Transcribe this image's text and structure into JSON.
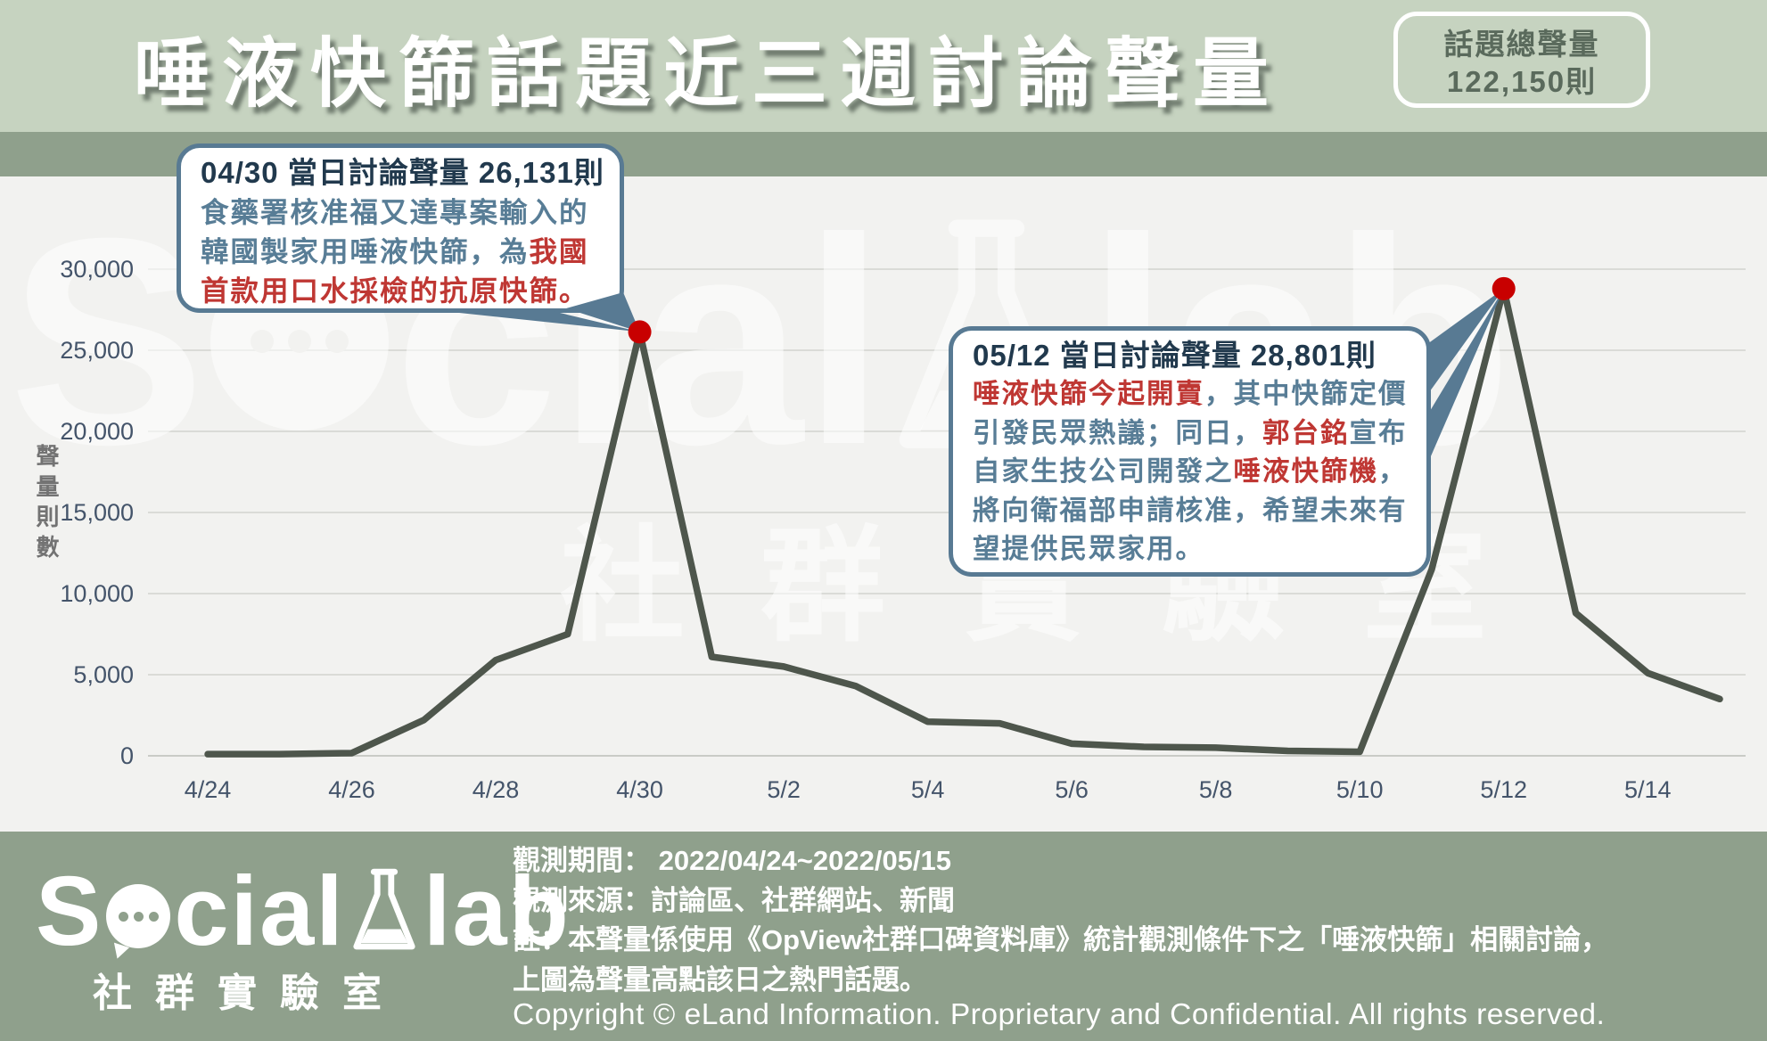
{
  "header": {
    "title": "唾液快篩話題近三週討論聲量",
    "badge": {
      "label": "話題總聲量",
      "value": "122,150則"
    }
  },
  "chart": {
    "y_axis_title": "聲量則數"
  },
  "chart_data": {
    "type": "line",
    "title": "唾液快篩話題近三週討論聲量",
    "xlabel": "",
    "ylabel": "聲量則數",
    "x": [
      "4/24",
      "4/25",
      "4/26",
      "4/27",
      "4/28",
      "4/29",
      "4/30",
      "5/1",
      "5/2",
      "5/3",
      "5/4",
      "5/5",
      "5/6",
      "5/7",
      "5/8",
      "5/9",
      "5/10",
      "5/11",
      "5/12",
      "5/13",
      "5/14",
      "5/15"
    ],
    "values": [
      100,
      100,
      168,
      2200,
      5900,
      7500,
      26131,
      6100,
      5500,
      4300,
      2100,
      2000,
      750,
      550,
      500,
      300,
      250,
      11500,
      28801,
      8800,
      5100,
      3500
    ],
    "x_tick_labels": [
      "4/24",
      "4/26",
      "4/28",
      "4/30",
      "5/2",
      "5/4",
      "5/6",
      "5/8",
      "5/10",
      "5/12",
      "5/14"
    ],
    "y_ticks": [
      0,
      5000,
      10000,
      15000,
      20000,
      25000,
      30000
    ],
    "y_tick_labels": [
      "0",
      "5,000",
      "10,000",
      "15,000",
      "20,000",
      "25,000",
      "30,000"
    ],
    "ylim": [
      0,
      32000
    ],
    "grid": true,
    "legend": false,
    "line_color": "#4e564c",
    "peaks": [
      {
        "x": "4/30",
        "value": 26131
      },
      {
        "x": "5/12",
        "value": 28801
      }
    ],
    "total_volume": "122,150則",
    "period": "2022/04/24~2022/05/15"
  },
  "annotations": {
    "c1": {
      "title": "04/30 當日討論聲量 26,131則",
      "lines": [
        [
          {
            "t": "食藥署核准福又達專案輸入的",
            "c": "blue"
          }
        ],
        [
          {
            "t": "韓國製家用唾液快篩，為",
            "c": "blue"
          },
          {
            "t": "我國",
            "c": "red"
          }
        ],
        [
          {
            "t": "首款用口水採檢的抗原快篩。",
            "c": "red"
          }
        ]
      ]
    },
    "c2": {
      "title": "05/12 當日討論聲量 28,801則",
      "lines": [
        [
          {
            "t": "唾液快篩今起開賣",
            "c": "red"
          },
          {
            "t": "，其中快篩定價",
            "c": "blue"
          }
        ],
        [
          {
            "t": "引發民眾熱議；同日，",
            "c": "blue"
          },
          {
            "t": "郭台銘",
            "c": "red"
          },
          {
            "t": "宣布",
            "c": "blue"
          }
        ],
        [
          {
            "t": "自家生技公司開發之",
            "c": "blue"
          },
          {
            "t": "唾液快篩機",
            "c": "red"
          },
          {
            "t": "，",
            "c": "blue"
          }
        ],
        [
          {
            "t": "將向衛福部申請核准，希望未來有",
            "c": "blue"
          }
        ],
        [
          {
            "t": "望提供民眾家用。",
            "c": "blue"
          }
        ]
      ]
    }
  },
  "watermark": {
    "part1": "S",
    "part2": "cial",
    "part3": "lab",
    "cjk": "社群實驗室"
  },
  "footer": {
    "logo": {
      "part1": "S",
      "part2": "cial",
      "part3": "lab",
      "subtitle": "社群實驗室",
      "icons": [
        "speech-bubble-icon",
        "flask-icon"
      ]
    },
    "notes": [
      "觀測期間：  2022/04/24~2022/05/15",
      "觀測來源：討論區、社群網站、新聞",
      "註：本聲量係使用《OpView社群口碑資料庫》統計觀測條件下之「唾液快篩」相關討論，",
      "上圖為聲量高點該日之熱門話題。"
    ],
    "copyright": "Copyright © eLand Information. Proprietary and Confidential. All rights reserved."
  },
  "colors": {
    "header_bg": "#c6d3c0",
    "band_bg": "#8fa08c",
    "chart_bg": "#f2f2f0",
    "footer_bg": "#8fa08c",
    "line": "#4e564c",
    "grid": "#dadbd7",
    "axis_text": "#44546a",
    "peak_dot": "#c80000",
    "callout_border": "#587a93",
    "callout_title": "#21394d",
    "callout_blue": "#587d96",
    "callout_red": "#bf3733",
    "badge_text": "#5a6a5c"
  }
}
